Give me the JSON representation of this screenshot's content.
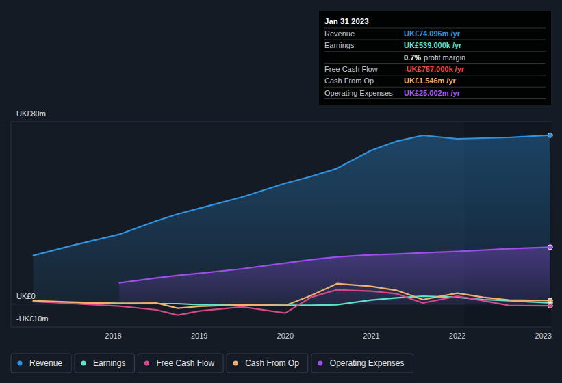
{
  "chart_data": {
    "type": "line",
    "x": [
      2017.07,
      2017.5,
      2018.07,
      2018.5,
      2018.75,
      2019.0,
      2019.5,
      2020.0,
      2020.3,
      2020.6,
      2021.0,
      2021.3,
      2021.6,
      2022.0,
      2022.3,
      2022.6,
      2023.08
    ],
    "xlim": [
      2016.81,
      2023.09
    ],
    "xticks": [
      2018,
      2019,
      2020,
      2021,
      2022,
      2023
    ],
    "ylim": [
      -10,
      80
    ],
    "yticks": [
      {
        "value": 80,
        "label": "UK£80m"
      },
      {
        "value": 0,
        "label": "UK£0"
      },
      {
        "value": -10,
        "label": "-UK£10m"
      }
    ],
    "grid": true,
    "legend": "bottom-left",
    "series": [
      {
        "name": "Revenue",
        "color": "#2f93e0",
        "type": "area",
        "values": [
          21.3,
          25.5,
          30.6,
          36.5,
          39.5,
          42,
          47,
          53,
          56,
          59.5,
          67.5,
          71.5,
          74,
          72.5,
          72.8,
          73.1,
          74.096
        ]
      },
      {
        "name": "Earnings",
        "color": "#5fe3c9",
        "type": "line",
        "values": [
          1.2,
          0.6,
          0.3,
          0.2,
          0.2,
          -0.3,
          -0.3,
          -0.5,
          -0.5,
          -0.3,
          1.8,
          2.8,
          3.5,
          3.0,
          2.0,
          1.5,
          0.539
        ]
      },
      {
        "name": "Free Cash Flow",
        "color": "#d44a86",
        "type": "line",
        "values": [
          1.2,
          0.3,
          -0.9,
          -2.5,
          -4.8,
          -3.0,
          -1.2,
          -3.9,
          3.0,
          6.3,
          5.7,
          4.5,
          0.5,
          3.5,
          1.5,
          -0.6,
          -0.757
        ]
      },
      {
        "name": "Cash From Op",
        "color": "#f2b06e",
        "type": "line",
        "values": [
          1.5,
          0.9,
          0.3,
          0.5,
          -1.8,
          -1.0,
          -0.3,
          -0.6,
          3.8,
          9.0,
          7.8,
          6.0,
          2.0,
          4.8,
          3.0,
          1.8,
          1.546
        ]
      },
      {
        "name": "Operating Expenses",
        "color": "#9d4ee8",
        "type": "area",
        "values": [
          null,
          null,
          9.3,
          11.5,
          12.6,
          13.5,
          15.5,
          18,
          19.5,
          20.7,
          21.6,
          22,
          22.5,
          23.1,
          23.7,
          24.3,
          25.002
        ]
      }
    ],
    "tooltip": {
      "title": "Jan 31 2023",
      "rows": [
        {
          "label": "Revenue",
          "value": "UK£74.096m /yr",
          "color": "#2f93e0"
        },
        {
          "label": "Earnings",
          "value": "UK£539.000k /yr",
          "color": "#5fe3c9"
        },
        {
          "value": "0.7%",
          "note": "profit margin",
          "color": "#ffffff"
        },
        {
          "label": "Free Cash Flow",
          "value": "-UK£757.000k /yr",
          "color": "#f04a4a"
        },
        {
          "label": "Cash From Op",
          "value": "UK£1.546m /yr",
          "color": "#f2b06e"
        },
        {
          "label": "Operating Expenses",
          "value": "UK£25.002m /yr",
          "color": "#a45ef0"
        }
      ]
    }
  }
}
